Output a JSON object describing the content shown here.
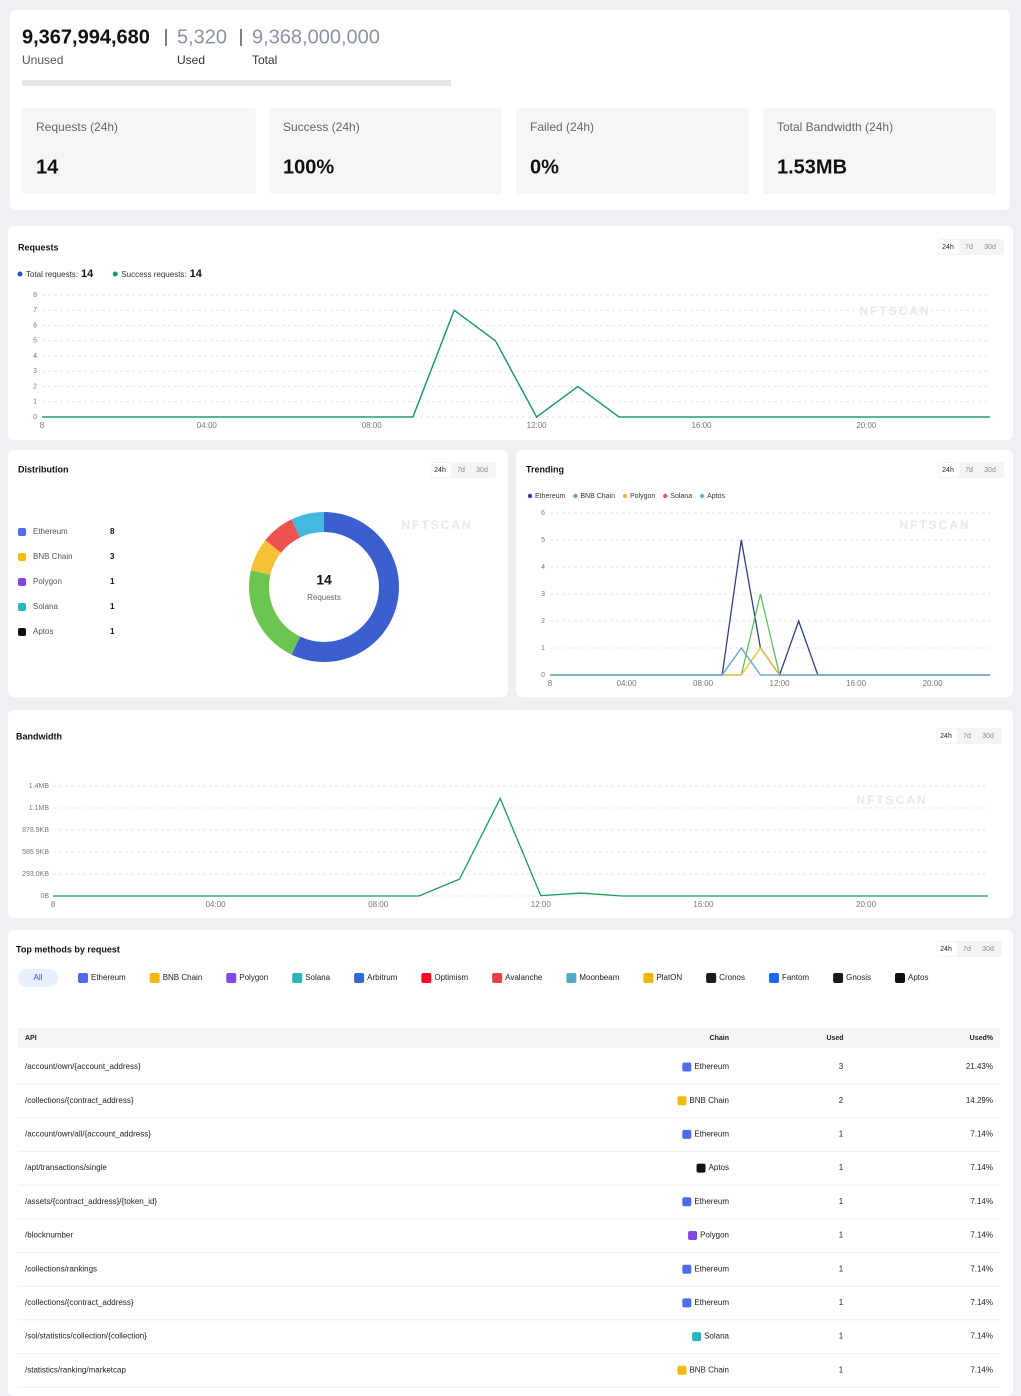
{
  "watermark": "NFTSCAN",
  "quota": {
    "unused": "9,367,994,680",
    "unused_label": "Unused",
    "used": "5,320",
    "used_label": "Used",
    "total": "9,368,000,000",
    "total_label": "Total"
  },
  "stats": [
    {
      "label": "Requests (24h)",
      "value": "14"
    },
    {
      "label": "Success (24h)",
      "value": "100%"
    },
    {
      "label": "Failed (24h)",
      "value": "0%"
    },
    {
      "label": "Total Bandwidth (24h)",
      "value": "1.53MB"
    }
  ],
  "chart_data": [
    {
      "type": "line",
      "title": "Requests",
      "tabs": [
        "24h",
        "7d",
        "30d"
      ],
      "categories": [
        "8",
        null,
        null,
        null,
        "04:00",
        null,
        null,
        null,
        "08:00",
        null,
        null,
        null,
        "12:00",
        null,
        null,
        null,
        "16:00",
        null,
        null,
        null,
        "20:00",
        null,
        null,
        null
      ],
      "ylim": [
        0,
        8
      ],
      "yticks": [
        0,
        1,
        2,
        3,
        4,
        5,
        6,
        7,
        8
      ],
      "grid": true,
      "series": [
        {
          "name": "Total requests:",
          "total": 14,
          "color": "#2f55d4",
          "values": [
            0,
            0,
            0,
            0,
            0,
            0,
            0,
            0,
            0,
            0,
            7,
            5,
            0,
            2,
            0,
            0,
            0,
            0,
            0,
            0,
            0,
            0,
            0,
            0
          ]
        },
        {
          "name": "Success requests:",
          "total": 14,
          "color": "#17a05d",
          "values": [
            0,
            0,
            0,
            0,
            0,
            0,
            0,
            0,
            0,
            0,
            7,
            5,
            0,
            2,
            0,
            0,
            0,
            0,
            0,
            0,
            0,
            0,
            0,
            0
          ]
        }
      ]
    },
    {
      "type": "donut",
      "title": "Distribution",
      "tabs": [
        "24h",
        "7d",
        "30d"
      ],
      "categories": [
        "Ethereum",
        "BNB Chain",
        "Polygon",
        "Solana",
        "Aptos"
      ],
      "values": [
        8,
        3,
        1,
        1,
        1
      ],
      "colors": [
        "#3b5fcf",
        "#6cc551",
        "#f7c137",
        "#ee5353",
        "#45b8e0"
      ],
      "center_value": 14,
      "center_label": "Requests"
    },
    {
      "type": "line",
      "title": "Trending",
      "tabs": [
        "24h",
        "7d",
        "30d"
      ],
      "categories": [
        "8",
        null,
        null,
        null,
        "04:00",
        null,
        null,
        null,
        "08:00",
        null,
        null,
        null,
        "12:00",
        null,
        null,
        null,
        "16:00",
        null,
        null,
        null,
        "20:00",
        null,
        null,
        null
      ],
      "ylim": [
        0,
        6
      ],
      "yticks": [
        0,
        1,
        2,
        3,
        4,
        5,
        6
      ],
      "grid": true,
      "series": [
        {
          "name": "Ethereum",
          "color": "#2f3e8f",
          "values": [
            0,
            0,
            0,
            0,
            0,
            0,
            0,
            0,
            0,
            0,
            5,
            1,
            0,
            2,
            0,
            0,
            0,
            0,
            0,
            0,
            0,
            0,
            0,
            0
          ]
        },
        {
          "name": "BNB Chain",
          "color": "#5cbf5c",
          "values": [
            0,
            0,
            0,
            0,
            0,
            0,
            0,
            0,
            0,
            0,
            0,
            3,
            0,
            0,
            0,
            0,
            0,
            0,
            0,
            0,
            0,
            0,
            0,
            0
          ]
        },
        {
          "name": "Polygon",
          "color": "#f5b731",
          "values": [
            0,
            0,
            0,
            0,
            0,
            0,
            0,
            0,
            0,
            0,
            0,
            1,
            0,
            0,
            0,
            0,
            0,
            0,
            0,
            0,
            0,
            0,
            0,
            0
          ]
        },
        {
          "name": "Solana",
          "color": "#ee5353",
          "values": [
            0,
            0,
            0,
            0,
            0,
            0,
            0,
            0,
            0,
            0,
            1,
            0,
            0,
            0,
            0,
            0,
            0,
            0,
            0,
            0,
            0,
            0,
            0,
            0
          ]
        },
        {
          "name": "Aptos",
          "color": "#5ab4e8",
          "values": [
            0,
            0,
            0,
            0,
            0,
            0,
            0,
            0,
            0,
            0,
            1,
            0,
            0,
            0,
            0,
            0,
            0,
            0,
            0,
            0,
            0,
            0,
            0,
            0
          ]
        }
      ]
    },
    {
      "type": "line",
      "title": "Bandwidth",
      "tabs": [
        "24h",
        "7d",
        "30d"
      ],
      "categories": [
        "8",
        null,
        null,
        null,
        "04:00",
        null,
        null,
        null,
        "08:00",
        null,
        null,
        null,
        "12:00",
        null,
        null,
        null,
        "16:00",
        null,
        null,
        null,
        "20:00",
        null,
        null,
        null
      ],
      "ylim": [
        0,
        1500000
      ],
      "yticks": [
        {
          "value": 0,
          "label": "0B"
        },
        {
          "value": 300000,
          "label": "293.0KB"
        },
        {
          "value": 600000,
          "label": "585.9KB"
        },
        {
          "value": 900000,
          "label": "878.9KB"
        },
        {
          "value": 1200000,
          "label": "1.1MB"
        },
        {
          "value": 1500000,
          "label": "1.4MB"
        }
      ],
      "grid": true,
      "series": [
        {
          "color": "#1a9c5a",
          "values": [
            0,
            0,
            0,
            0,
            0,
            0,
            0,
            0,
            0,
            0,
            230000,
            1330000,
            5000,
            40000,
            0,
            0,
            0,
            0,
            0,
            0,
            0,
            0,
            0,
            0
          ]
        }
      ]
    }
  ],
  "methods": {
    "title": "Top methods by request",
    "tabs": [
      "24h",
      "7d",
      "30d"
    ],
    "filters": [
      {
        "name": "All"
      },
      {
        "name": "Ethereum",
        "color": "#4f6bed"
      },
      {
        "name": "BNB Chain",
        "color": "#f0b90b"
      },
      {
        "name": "Polygon",
        "color": "#8247e5"
      },
      {
        "name": "Solana",
        "color": "#2bb3c0"
      },
      {
        "name": "Arbitrum",
        "color": "#2d6ad8"
      },
      {
        "name": "Optimism",
        "color": "#ff0420"
      },
      {
        "name": "Avalanche",
        "color": "#e84142"
      },
      {
        "name": "Moonbeam",
        "color": "#53a9c9"
      },
      {
        "name": "PlatON",
        "color": "#f5b400"
      },
      {
        "name": "Cronos",
        "color": "#1a1a1a"
      },
      {
        "name": "Fantom",
        "color": "#1969ff"
      },
      {
        "name": "Gnosis",
        "color": "#1a1a1a"
      },
      {
        "name": "Aptos",
        "color": "#111111"
      }
    ],
    "columns": [
      "API",
      "Chain",
      "Used",
      "Used%"
    ],
    "rows": [
      [
        "/account/own/{account_address}",
        "Ethereum",
        3,
        "21.43%"
      ],
      [
        "/collections/{contract_address}",
        "BNB Chain",
        2,
        "14.29%"
      ],
      [
        "/account/own/all/{account_address}",
        "Ethereum",
        1,
        "7.14%"
      ],
      [
        "/apt/transactions/single",
        "Aptos",
        1,
        "7.14%"
      ],
      [
        "/assets/{contract_address}/{token_id}",
        "Ethereum",
        1,
        "7.14%"
      ],
      [
        "/blocknumber",
        "Polygon",
        1,
        "7.14%"
      ],
      [
        "/collections/rankings",
        "Ethereum",
        1,
        "7.14%"
      ],
      [
        "/collections/{contract_address}",
        "Ethereum",
        1,
        "7.14%"
      ],
      [
        "/sol/statistics/collection/{collection}",
        "Solana",
        1,
        "7.14%"
      ],
      [
        "/statistics/ranking/marketcap",
        "BNB Chain",
        1,
        "7.14%"
      ]
    ]
  }
}
